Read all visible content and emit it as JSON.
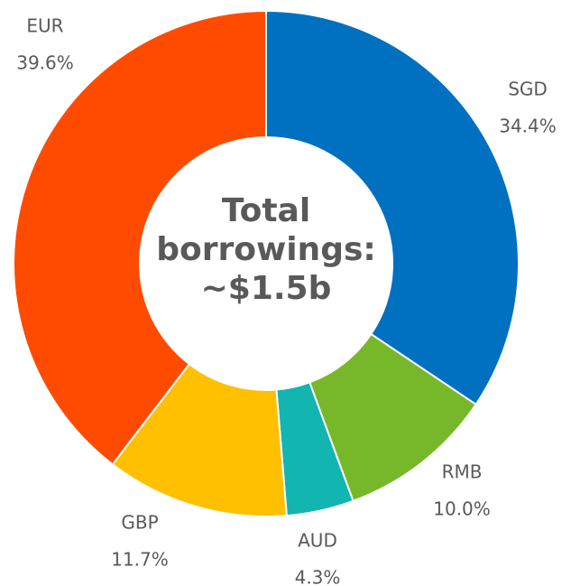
{
  "chart_data": {
    "type": "donut",
    "categories": [
      "SGD",
      "RMB",
      "AUD",
      "GBP",
      "EUR"
    ],
    "values": [
      34.4,
      10.0,
      4.3,
      11.7,
      39.6
    ],
    "value_labels": [
      "34.4%",
      "10.0%",
      "4.3%",
      "11.7%",
      "39.6%"
    ],
    "colors": [
      "#0070c0",
      "#77b82a",
      "#12b5b0",
      "#ffc000",
      "#ff4b00"
    ],
    "center_label": [
      "Total",
      "borrowings:",
      "~$1.5b"
    ]
  }
}
